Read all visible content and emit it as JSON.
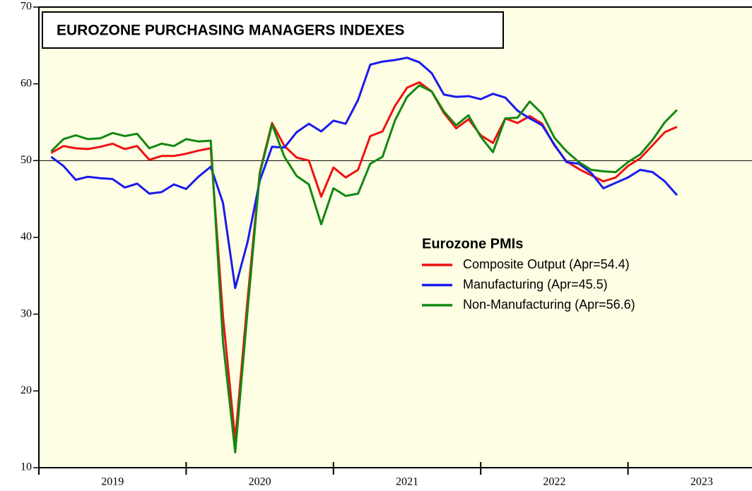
{
  "chart_data": {
    "type": "line",
    "title": "EUROZONE PURCHASING MANAGERS INDEXES",
    "legend_title": "Eurozone PMIs",
    "x": [
      2019.083,
      2019.167,
      2019.25,
      2019.333,
      2019.417,
      2019.5,
      2019.583,
      2019.667,
      2019.75,
      2019.833,
      2019.917,
      2020,
      2020.083,
      2020.167,
      2020.25,
      2020.333,
      2020.417,
      2020.5,
      2020.583,
      2020.667,
      2020.75,
      2020.833,
      2020.917,
      2021,
      2021.083,
      2021.167,
      2021.25,
      2021.333,
      2021.417,
      2021.5,
      2021.583,
      2021.667,
      2021.75,
      2021.833,
      2021.917,
      2022,
      2022.083,
      2022.167,
      2022.25,
      2022.333,
      2022.417,
      2022.5,
      2022.583,
      2022.667,
      2022.75,
      2022.833,
      2022.917,
      2023,
      2023.083,
      2023.167,
      2023.25,
      2023.333
    ],
    "xlim": [
      2019,
      2023.842
    ],
    "xticks": [
      2019,
      2020,
      2021,
      2022,
      2023
    ],
    "year_labels": [
      "2019",
      "2020",
      "2021",
      "2022",
      "2023"
    ],
    "ylim": [
      10,
      70
    ],
    "yticks": [
      10,
      20,
      30,
      40,
      50,
      60,
      70
    ],
    "hline": 50,
    "series": [
      {
        "name": "Composite Output (Apr=54.4)",
        "color": "#ee1111",
        "values": [
          51.0,
          51.9,
          51.6,
          51.5,
          51.8,
          52.2,
          51.5,
          51.9,
          50.1,
          50.6,
          50.6,
          50.9,
          51.3,
          51.6,
          29.7,
          13.6,
          31.9,
          48.5,
          54.9,
          51.9,
          50.4,
          50.0,
          45.3,
          49.1,
          47.8,
          48.8,
          53.2,
          53.8,
          57.1,
          59.5,
          60.2,
          59.0,
          56.2,
          54.2,
          55.4,
          53.3,
          52.3,
          55.5,
          54.9,
          55.8,
          54.8,
          52.0,
          49.9,
          48.9,
          48.1,
          47.3,
          47.8,
          49.3,
          50.3,
          52.0,
          53.7,
          54.4
        ]
      },
      {
        "name": "Manufacturing (Apr=45.5)",
        "color": "#1a1aee",
        "values": [
          50.5,
          49.3,
          47.5,
          47.9,
          47.7,
          47.6,
          46.5,
          47.0,
          45.7,
          45.9,
          46.9,
          46.3,
          47.9,
          49.2,
          44.5,
          33.4,
          39.4,
          47.4,
          51.8,
          51.7,
          53.7,
          54.8,
          53.8,
          55.2,
          54.8,
          57.9,
          62.5,
          62.9,
          63.1,
          63.4,
          62.8,
          61.4,
          58.6,
          58.3,
          58.4,
          58.0,
          58.7,
          58.2,
          56.5,
          55.5,
          54.6,
          52.1,
          49.8,
          49.6,
          48.4,
          46.4,
          47.1,
          47.8,
          48.8,
          48.5,
          47.3,
          45.5
        ]
      },
      {
        "name": "Non-Manufacturing (Apr=56.6)",
        "color": "#118811",
        "values": [
          51.2,
          52.8,
          53.3,
          52.8,
          52.9,
          53.6,
          53.2,
          53.5,
          51.6,
          52.2,
          51.9,
          52.8,
          52.5,
          52.6,
          26.4,
          12.0,
          30.5,
          48.3,
          54.7,
          50.5,
          48.0,
          46.9,
          41.7,
          46.4,
          45.4,
          45.7,
          49.6,
          50.5,
          55.2,
          58.3,
          59.8,
          59.0,
          56.4,
          54.6,
          55.9,
          53.1,
          51.1,
          55.5,
          55.6,
          57.7,
          56.1,
          53.0,
          51.2,
          49.8,
          48.8,
          48.6,
          48.5,
          49.8,
          50.8,
          52.7,
          55.0,
          56.6
        ]
      }
    ]
  }
}
